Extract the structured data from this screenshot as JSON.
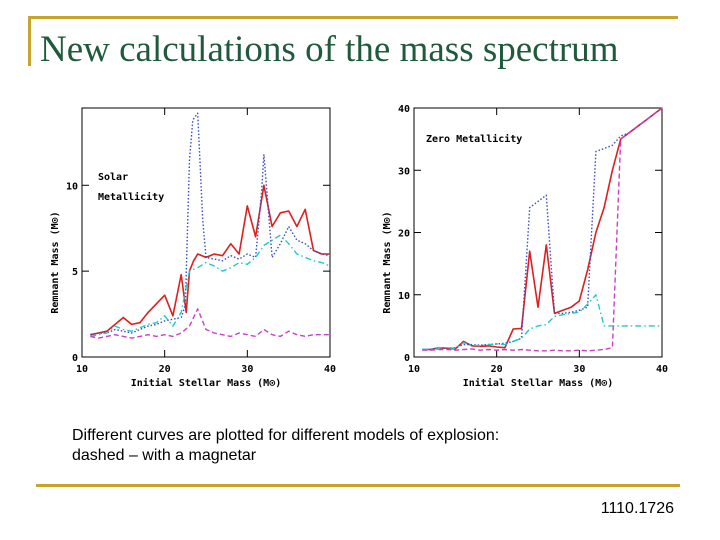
{
  "slide": {
    "title": "New calculations of the mass spectrum",
    "caption_line1": "Different curves are plotted for different models of explosion:",
    "caption_line2": "dashed – with a magnetar",
    "reference": "1110.1726",
    "accent_color": "#c8a52a",
    "title_color": "#1f5a3c"
  },
  "chart_data": [
    {
      "type": "line",
      "title": "",
      "annotation_lines": [
        "Solar",
        "Metallicity"
      ],
      "xlabel": "Initial Stellar Mass (M⊙)",
      "ylabel": "Remnant Mass (M⊙)",
      "xlim": [
        10,
        40
      ],
      "ylim": [
        0,
        14.5
      ],
      "xticks": [
        10,
        20,
        30,
        40
      ],
      "yticks": [
        0,
        5,
        10
      ],
      "series": [
        {
          "name": "red-solid",
          "color": "#dd1f1f",
          "dash": "",
          "x": [
            11,
            12,
            13,
            14,
            15,
            16,
            17,
            18,
            19,
            20,
            21,
            22,
            22.6,
            23,
            23.5,
            24,
            25,
            26,
            27,
            28,
            29,
            30,
            31,
            32,
            33,
            34,
            35,
            36,
            37,
            38,
            39,
            40
          ],
          "y": [
            1.3,
            1.4,
            1.5,
            1.9,
            2.3,
            1.9,
            2.0,
            2.6,
            3.1,
            3.6,
            2.4,
            4.8,
            2.6,
            5.0,
            5.6,
            6.0,
            5.8,
            6.0,
            5.9,
            6.6,
            6.0,
            8.8,
            7.0,
            10.0,
            7.6,
            8.4,
            8.5,
            7.6,
            8.6,
            6.2,
            6.0,
            6.0
          ]
        },
        {
          "name": "blue-dotted",
          "color": "#3a4cc7",
          "dash": "1.5,2",
          "x": [
            11,
            12,
            13,
            14,
            15,
            16,
            17,
            18,
            19,
            20,
            21,
            22,
            22.5,
            23,
            23.4,
            24,
            24.6,
            25,
            26,
            27,
            28,
            29,
            30,
            31,
            31.7,
            32,
            33,
            34,
            35,
            36,
            37,
            38,
            39,
            40
          ],
          "y": [
            1.3,
            1.4,
            1.4,
            1.6,
            1.5,
            1.4,
            1.6,
            1.8,
            1.9,
            2.1,
            2.2,
            2.3,
            3.0,
            11.5,
            13.8,
            14.2,
            8.0,
            5.8,
            5.7,
            5.6,
            5.9,
            5.7,
            6.0,
            5.8,
            9.5,
            11.8,
            5.8,
            6.6,
            7.6,
            6.8,
            6.6,
            6.2,
            6.0,
            5.9
          ]
        },
        {
          "name": "cyan-dashdot",
          "color": "#20c9c9",
          "dash": "6,3,1.5,3",
          "x": [
            11,
            12,
            13,
            14,
            15,
            16,
            17,
            18,
            19,
            20,
            21,
            22,
            23,
            24,
            25,
            26,
            27,
            28,
            29,
            30,
            31,
            32,
            33,
            34,
            35,
            36,
            37,
            38,
            39,
            40
          ],
          "y": [
            1.2,
            1.3,
            1.4,
            1.8,
            1.6,
            1.5,
            1.7,
            1.9,
            2.0,
            2.4,
            1.8,
            2.6,
            5.0,
            5.2,
            5.5,
            5.3,
            5.0,
            5.2,
            5.5,
            5.4,
            5.8,
            6.5,
            6.8,
            7.1,
            6.6,
            6.0,
            5.8,
            5.6,
            5.5,
            5.3
          ]
        },
        {
          "name": "magenta-dashed",
          "color": "#c93fc9",
          "dash": "5,3",
          "x": [
            11,
            12,
            13,
            14,
            15,
            16,
            17,
            18,
            19,
            20,
            21,
            22,
            23,
            24,
            25,
            26,
            27,
            28,
            29,
            30,
            31,
            32,
            33,
            34,
            35,
            36,
            37,
            38,
            39,
            40
          ],
          "y": [
            1.2,
            1.1,
            1.2,
            1.3,
            1.2,
            1.1,
            1.2,
            1.3,
            1.2,
            1.3,
            1.2,
            1.4,
            1.8,
            2.8,
            1.6,
            1.4,
            1.3,
            1.2,
            1.4,
            1.3,
            1.2,
            1.6,
            1.3,
            1.2,
            1.5,
            1.3,
            1.2,
            1.3,
            1.3,
            1.3
          ]
        }
      ]
    },
    {
      "type": "line",
      "title": "",
      "annotation_lines": [
        "Zero Metallicity"
      ],
      "xlabel": "Initial Stellar Mass (M⊙)",
      "ylabel": "Remnant Mass (M⊙)",
      "xlim": [
        10,
        40
      ],
      "ylim": [
        0,
        40
      ],
      "xticks": [
        10,
        20,
        30,
        40
      ],
      "yticks": [
        0,
        10,
        20,
        30,
        40
      ],
      "series": [
        {
          "name": "red-solid",
          "color": "#dd1f1f",
          "dash": "",
          "x": [
            11,
            12,
            13,
            14,
            15,
            16,
            17,
            18,
            19,
            20,
            21,
            22,
            23,
            24,
            25,
            26,
            27,
            28,
            29,
            30,
            31,
            32,
            33,
            34,
            35,
            36,
            37,
            38,
            39,
            40
          ],
          "y": [
            1.2,
            1.2,
            1.5,
            1.4,
            1.3,
            2.5,
            1.8,
            1.7,
            1.8,
            1.6,
            1.5,
            4.5,
            4.6,
            17.0,
            8.0,
            18.0,
            7.0,
            7.5,
            8.0,
            9.0,
            14.0,
            20.0,
            24.0,
            30.0,
            35.0,
            36.0,
            37.0,
            38.0,
            39.0,
            40.0
          ]
        },
        {
          "name": "blue-dotted",
          "color": "#3a4cc7",
          "dash": "1.5,2",
          "x": [
            11,
            12,
            13,
            14,
            15,
            16,
            17,
            18,
            19,
            20,
            21,
            22,
            23,
            24,
            25,
            26,
            27,
            28,
            29,
            30,
            31,
            32,
            33,
            34,
            35,
            36,
            37,
            38,
            39,
            40
          ],
          "y": [
            1.2,
            1.2,
            1.3,
            1.4,
            1.5,
            2.0,
            2.0,
            1.9,
            2.0,
            2.1,
            2.2,
            2.5,
            3.0,
            24.0,
            25.0,
            26.0,
            7.0,
            7.0,
            7.2,
            7.5,
            8.0,
            33.0,
            33.5,
            34.0,
            35.5,
            36.0,
            37.0,
            38.0,
            39.0,
            40.0
          ]
        },
        {
          "name": "cyan-dashdot",
          "color": "#20c9c9",
          "dash": "6,3,1.5,3",
          "x": [
            11,
            12,
            13,
            14,
            15,
            16,
            17,
            18,
            19,
            20,
            21,
            22,
            23,
            24,
            25,
            26,
            27,
            28,
            29,
            30,
            31,
            32,
            33,
            34,
            35,
            36,
            37,
            38,
            39,
            40
          ],
          "y": [
            1.2,
            1.3,
            1.5,
            1.5,
            1.4,
            2.3,
            1.9,
            1.8,
            2.0,
            2.1,
            2.0,
            2.5,
            3.0,
            4.5,
            5.0,
            5.2,
            6.5,
            6.8,
            7.0,
            7.2,
            8.5,
            10.0,
            5.0,
            5.0,
            5.0,
            5.0,
            5.0,
            5.0,
            5.0,
            5.0
          ]
        },
        {
          "name": "magenta-dashed",
          "color": "#c93fc9",
          "dash": "5,3",
          "x": [
            11,
            12,
            13,
            14,
            15,
            16,
            17,
            18,
            19,
            20,
            21,
            22,
            23,
            24,
            25,
            26,
            27,
            28,
            29,
            30,
            31,
            32,
            33,
            34,
            35,
            36,
            37,
            38,
            39,
            40
          ],
          "y": [
            1.1,
            1.1,
            1.2,
            1.2,
            1.1,
            1.2,
            1.3,
            1.1,
            1.2,
            1.1,
            1.2,
            1.1,
            1.2,
            1.1,
            1.0,
            1.0,
            1.1,
            1.0,
            1.0,
            1.1,
            1.0,
            1.1,
            1.2,
            1.5,
            35.0,
            36.0,
            37.0,
            38.0,
            39.0,
            40.0
          ]
        }
      ]
    }
  ]
}
